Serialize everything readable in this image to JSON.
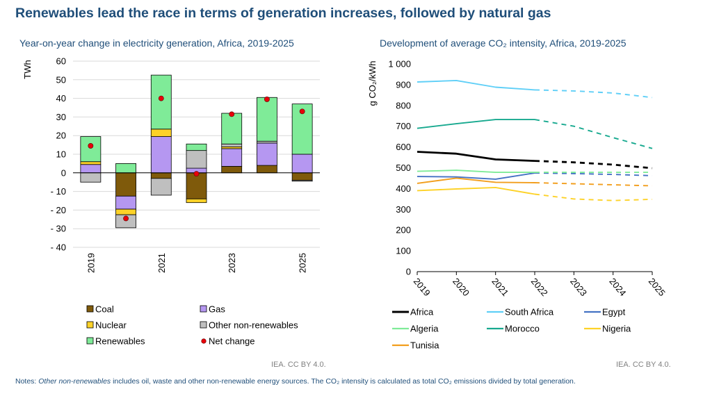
{
  "title": "Renewables lead the race in terms of generation increases, followed by natural gas",
  "left_credit": "IEA. CC BY 4.0.",
  "right_credit": "IEA. CC BY 4.0.",
  "notes": {
    "prefix": "Notes: ",
    "term": "Other non-renewables",
    "text": " includes oil, waste and other non-renewable energy sources. The CO₂ intensity is calculated as total CO₂ emissions divided by total generation."
  },
  "chart_data": [
    {
      "type": "bar",
      "stacked": true,
      "title": "Year-on-year change in electricity generation, Africa, 2019-2025",
      "ylabel": "TWh",
      "ylim": [
        -40,
        60
      ],
      "yticks": [
        "60",
        "50",
        "40",
        "30",
        "20",
        "10",
        "0",
        "- 10",
        "- 20",
        "- 30",
        "- 40"
      ],
      "ytick_values": [
        60,
        50,
        40,
        30,
        20,
        10,
        0,
        -10,
        -20,
        -30,
        -40
      ],
      "categories": [
        "2019",
        "2020",
        "2021",
        "2022",
        "2023",
        "2024",
        "2025"
      ],
      "category_labels": [
        "2019",
        "",
        "2021",
        "",
        "2023",
        "",
        "2025"
      ],
      "series": [
        {
          "name": "Coal",
          "color": "#7f5a0b",
          "values": [
            0,
            -12.5,
            -3,
            -14,
            3.5,
            4,
            -4
          ]
        },
        {
          "name": "Gas",
          "color": "#b597f1",
          "values": [
            4.5,
            -7,
            19.5,
            2.5,
            9.5,
            12,
            10
          ]
        },
        {
          "name": "Nuclear",
          "color": "#fdd228",
          "values": [
            1.5,
            -3,
            4,
            -2,
            1,
            0,
            0
          ]
        },
        {
          "name": "Other non-renewables",
          "color": "#bfbfbf",
          "values": [
            -5,
            -7,
            -9,
            9.5,
            1.5,
            1,
            -0.5
          ]
        },
        {
          "name": "Renewables",
          "color": "#7feb98",
          "values": [
            13.5,
            5,
            29,
            3.5,
            16.5,
            23.5,
            27
          ]
        }
      ],
      "net_change": {
        "name": "Net change",
        "color": "#e8000b",
        "values": [
          14.5,
          -24.5,
          40,
          -0.5,
          31.5,
          39.5,
          33
        ]
      },
      "legend": [
        "Coal",
        "Gas",
        "Nuclear",
        "Other non-renewables",
        "Renewables",
        "Net change"
      ]
    },
    {
      "type": "line",
      "title": "Development of average CO₂ intensity, Africa, 2019-2025",
      "ylabel": "g CO₂/kWh",
      "ylim": [
        0,
        1000
      ],
      "yticks": [
        "1 000",
        "900",
        "800",
        "700",
        "600",
        "500",
        "400",
        "300",
        "200",
        "100",
        "0"
      ],
      "ytick_values": [
        1000,
        900,
        800,
        700,
        600,
        500,
        400,
        300,
        200,
        100,
        0
      ],
      "x": [
        "2019",
        "2020",
        "2021",
        "2022",
        "2023",
        "2024",
        "2025"
      ],
      "solid_through": "2022",
      "dashed_after": "2022",
      "series": [
        {
          "name": "Africa",
          "color": "#000000",
          "bold": true,
          "values": [
            577,
            568,
            540,
            533,
            526,
            515,
            498
          ]
        },
        {
          "name": "South Africa",
          "color": "#5fcff7",
          "values": [
            913,
            920,
            888,
            875,
            870,
            860,
            838
          ]
        },
        {
          "name": "Egypt",
          "color": "#4472c4",
          "values": [
            458,
            456,
            445,
            475,
            472,
            468,
            462
          ]
        },
        {
          "name": "Algeria",
          "color": "#7feb98",
          "values": [
            483,
            488,
            478,
            478,
            478,
            478,
            478
          ]
        },
        {
          "name": "Morocco",
          "color": "#17a98f",
          "values": [
            690,
            712,
            732,
            732,
            700,
            645,
            593
          ]
        },
        {
          "name": "Nigeria",
          "color": "#fdd228",
          "values": [
            390,
            398,
            405,
            373,
            350,
            342,
            348
          ]
        },
        {
          "name": "Tunisia",
          "color": "#f29e1d",
          "values": [
            425,
            450,
            430,
            428,
            423,
            418,
            413
          ]
        }
      ],
      "legend": [
        "Africa",
        "South Africa",
        "Egypt",
        "Algeria",
        "Morocco",
        "Nigeria",
        "Tunisia"
      ]
    }
  ]
}
